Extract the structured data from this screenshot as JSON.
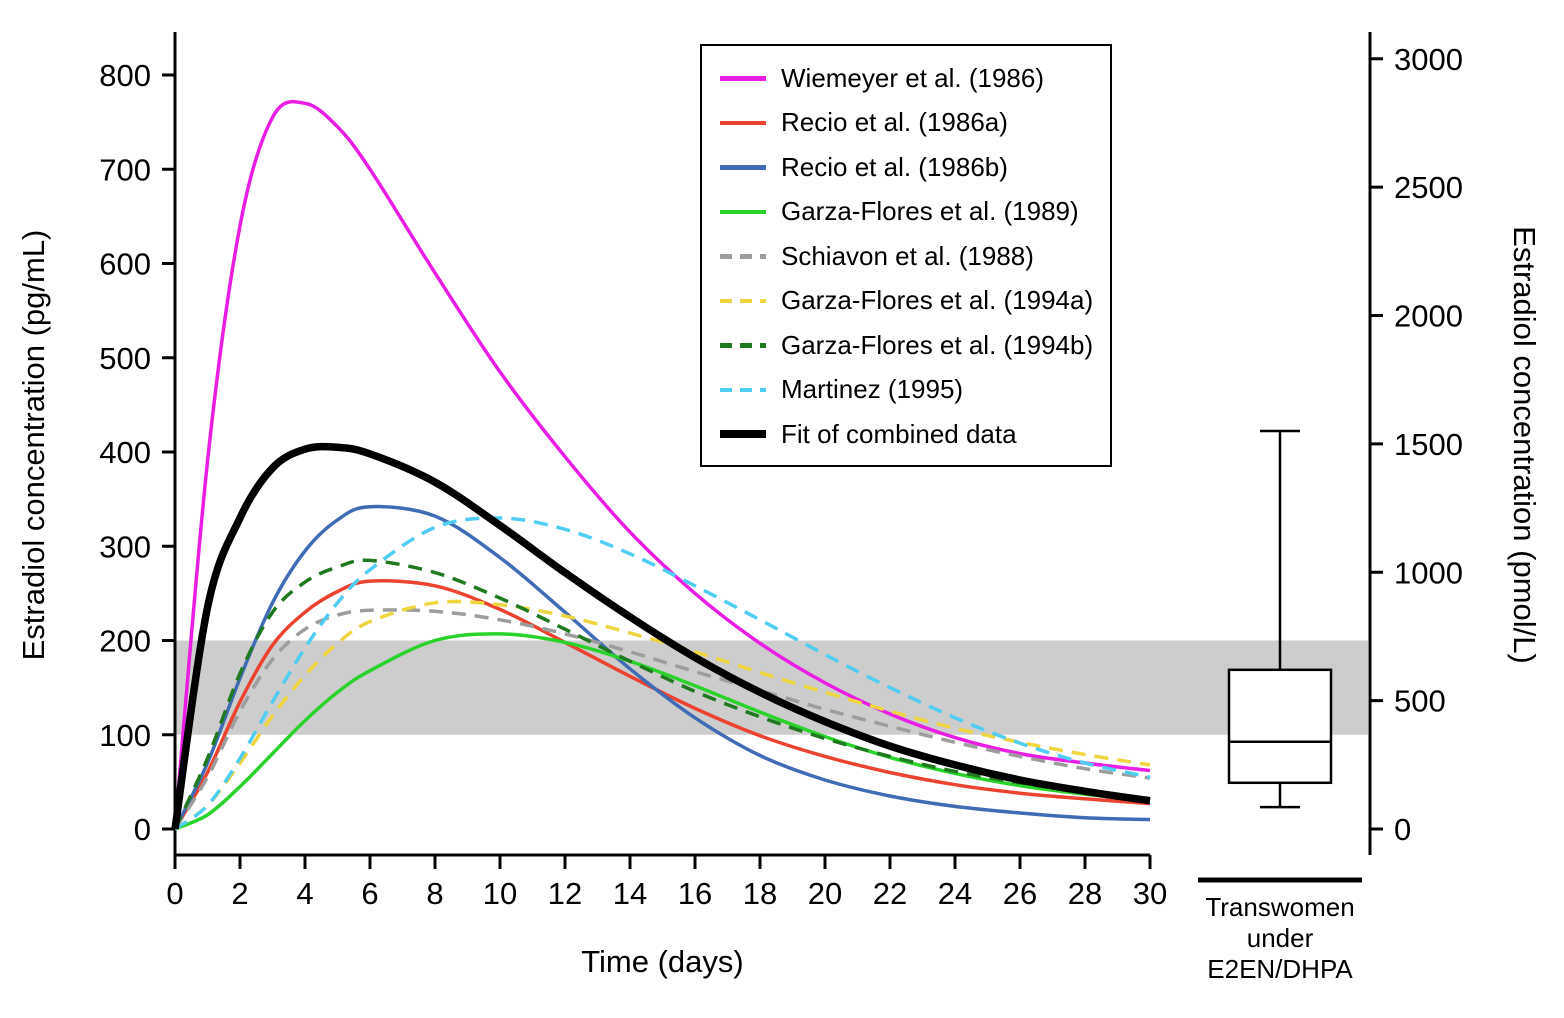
{
  "chart_data": {
    "type": "line",
    "title": "",
    "xlabel": "Time (days)",
    "ylabel_left": "Estradiol concentration (pg/mL)",
    "ylabel_right": "Estradiol concentration (pmol/L)",
    "x_ticks": [
      0,
      2,
      4,
      6,
      8,
      10,
      12,
      14,
      16,
      18,
      20,
      22,
      24,
      26,
      28,
      30
    ],
    "xlim": [
      0,
      30
    ],
    "y_ticks_left": [
      0,
      100,
      200,
      300,
      400,
      500,
      600,
      700,
      800
    ],
    "ylim_left": [
      0,
      850
    ],
    "y_ticks_right": [
      0,
      500,
      1000,
      1500,
      2000,
      2500,
      3000
    ],
    "ylim_right": [
      0,
      3120
    ],
    "pmol_per_pg": 3.671,
    "grid": false,
    "legend_position": "top-center",
    "reference_band_pgml": [
      100,
      200
    ],
    "reference_band_color": "#cdcdcd",
    "x_days": [
      0,
      1,
      2,
      3,
      4,
      5,
      6,
      8,
      10,
      12,
      14,
      16,
      18,
      20,
      22,
      24,
      26,
      28,
      30
    ],
    "series": [
      {
        "name": "Wiemeyer et al. (1986)",
        "color": "#ea1de4",
        "dash": "",
        "width": 3.5,
        "values": [
          0,
          390,
          640,
          755,
          770,
          745,
          700,
          590,
          485,
          395,
          315,
          250,
          197,
          155,
          122,
          97,
          80,
          70,
          62
        ]
      },
      {
        "name": "Recio et al. (1986a)",
        "color": "#ec4230",
        "dash": "",
        "width": 3.5,
        "values": [
          0,
          60,
          135,
          195,
          230,
          252,
          263,
          258,
          233,
          198,
          162,
          128,
          99,
          77,
          60,
          47,
          38,
          32,
          27
        ]
      },
      {
        "name": "Recio et al. (1986b)",
        "color": "#3f6cb4",
        "dash": "",
        "width": 3.5,
        "values": [
          0,
          70,
          160,
          240,
          295,
          328,
          342,
          332,
          288,
          230,
          170,
          118,
          78,
          52,
          35,
          24,
          17,
          12,
          10
        ]
      },
      {
        "name": "Garza-Flores et al. (1989)",
        "color": "#29d32a",
        "dash": "",
        "width": 3.5,
        "values": [
          0,
          15,
          45,
          80,
          115,
          145,
          168,
          200,
          207,
          198,
          178,
          152,
          124,
          98,
          76,
          59,
          46,
          37,
          30
        ]
      },
      {
        "name": "Schiavon et al. (1988)",
        "color": "#9d9d9d",
        "dash": "14,9",
        "width": 3.5,
        "values": [
          0,
          55,
          125,
          180,
          212,
          227,
          232,
          231,
          222,
          207,
          188,
          167,
          147,
          127,
          109,
          92,
          77,
          64,
          54
        ]
      },
      {
        "name": "Garza-Flores et al. (1994a)",
        "color": "#efd53f",
        "dash": "14,9",
        "width": 3.5,
        "values": [
          0,
          25,
          70,
          120,
          163,
          197,
          220,
          240,
          238,
          226,
          208,
          188,
          166,
          145,
          125,
          107,
          92,
          79,
          68
        ]
      },
      {
        "name": "Garza-Flores et al. (1994b)",
        "color": "#1f7a1f",
        "dash": "14,9",
        "width": 3.5,
        "values": [
          0,
          75,
          165,
          230,
          262,
          278,
          285,
          272,
          245,
          212,
          178,
          146,
          119,
          96,
          77,
          61,
          49,
          39,
          32
        ]
      },
      {
        "name": "Martinez (1995)",
        "color": "#4fcdf2",
        "dash": "14,9",
        "width": 3.5,
        "values": [
          0,
          25,
          75,
          135,
          192,
          240,
          275,
          320,
          330,
          318,
          292,
          258,
          222,
          185,
          150,
          118,
          91,
          70,
          55
        ]
      },
      {
        "name": "Fit of combined data",
        "color": "#000000",
        "dash": "",
        "width": 7.5,
        "values": [
          0,
          235,
          330,
          383,
          403,
          405,
          398,
          368,
          322,
          272,
          225,
          182,
          145,
          114,
          88,
          68,
          52,
          40,
          30
        ]
      }
    ],
    "boxplot": {
      "label_lines": [
        "Transwomen",
        "under",
        "E2EN/DHPA"
      ],
      "units": "pmol/L",
      "whisker_low_pmol": 85,
      "q1_pmol": 180,
      "median_pmol": 340,
      "q3_pmol": 620,
      "whisker_high_pmol": 1550
    }
  }
}
